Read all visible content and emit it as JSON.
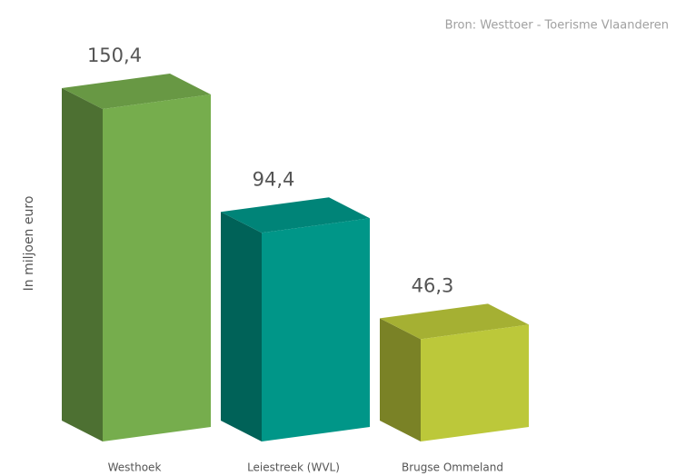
{
  "chart_data": {
    "type": "bar3d",
    "source": "Bron: Westtoer - Toerisme Vlaanderen",
    "ylabel": "In miljoen euro",
    "categories": [
      "Westhoek",
      "Leiestreek (WVL)",
      "Brugse Ommeland"
    ],
    "values": [
      150.4,
      94.4,
      46.3
    ],
    "value_labels": [
      "150,4",
      "94,4",
      "46,3"
    ],
    "colors": [
      "#76ad4d",
      "#009688",
      "#bcc83a"
    ]
  }
}
